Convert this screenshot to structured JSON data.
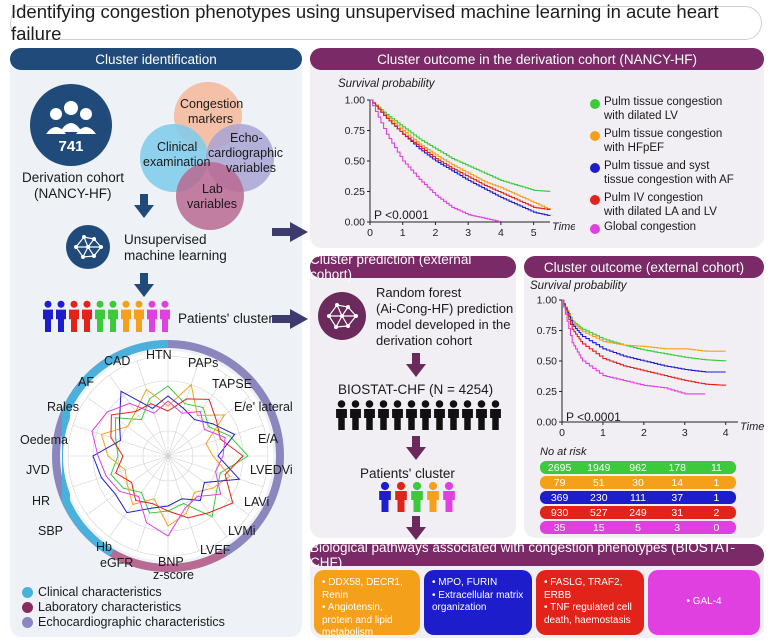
{
  "title": "Identifying congestion phenotypes using unsupervised machine learning in acute heart failure",
  "left_panel": {
    "header": "Cluster identification",
    "cohort_count": "741",
    "cohort_label_1": "Derivation cohort",
    "cohort_label_2": "(NANCY-HF)",
    "venn": {
      "congestion_1": "Congestion",
      "congestion_2": "markers",
      "clinical_1": "Clinical",
      "clinical_2": "examination",
      "echo_1": "Echo-",
      "echo_2": "cardiographic",
      "echo_3": "variables",
      "lab_1": "Lab",
      "lab_2": "variables"
    },
    "ml_label_1": "Unsupervised",
    "ml_label_2": "machine learning",
    "patients_cluster": "Patients' cluster",
    "radar_labels": {
      "htn": "HTN",
      "paps": "PAPs",
      "tapse": "TAPSE",
      "ee": "E/e' lateral",
      "ea": "E/A",
      "lvedvi": "LVEDVi",
      "lavi": "LAVi",
      "lvmi": "LVMi",
      "lvef": "LVEF",
      "bnp": "BNP",
      "zscore": "z-score",
      "egfr": "eGFR",
      "hb": "Hb",
      "sbp": "SBP",
      "hr": "HR",
      "jvd": "JVD",
      "oedema": "Oedema",
      "rales": "Rales",
      "af": "AF",
      "cad": "CAD"
    },
    "legend": [
      {
        "label": "Clinical characteristics",
        "color": "#4ab0dc"
      },
      {
        "label": "Laboratory characteristics",
        "color": "#8a2b5e"
      },
      {
        "label": "Echocardiographic characteristics",
        "color": "#8b86bd"
      }
    ]
  },
  "derivation_outcome": {
    "header": "Cluster outcome in the derivation cohort (NANCY-HF)",
    "ylabel": "Survival probability",
    "xlabel": "Time",
    "pvalue": "P <0.0001",
    "y_ticks": [
      "1.00",
      "0.75",
      "0.50",
      "0.25",
      "0.00"
    ],
    "x_ticks": [
      "0",
      "1",
      "2",
      "3",
      "4",
      "5"
    ]
  },
  "km_legend": [
    {
      "line1": "Pulm tissue congestion",
      "line2": "with dilated LV",
      "color": "#3cc93c"
    },
    {
      "line1": "Pulm tissue congestion",
      "line2": "with HFpEF",
      "color": "#f5a01a"
    },
    {
      "line1": "Pulm tissue and syst",
      "line2": "tissue congestion with AF",
      "color": "#1d1dcc"
    },
    {
      "line1": "Pulm IV congestion",
      "line2": "with dilated LA and LV",
      "color": "#e2231a"
    },
    {
      "line1": "Global congestion",
      "line2": "",
      "color": "#e040e0"
    }
  ],
  "prediction": {
    "header": "Cluster prediction (external cohort)",
    "rf_1": "Random forest",
    "rf_2": "(Ai-Cong-HF) prediction",
    "rf_3": "model developed in the",
    "rf_4": "derivation cohort",
    "biostat": "BIOSTAT-CHF (N = 4254)",
    "patients_cluster": "Patients' cluster"
  },
  "external_outcome": {
    "header": "Cluster outcome (external cohort)",
    "ylabel": "Survival probability",
    "xlabel": "Time",
    "pvalue": "P <0.0001",
    "y_ticks": [
      "1.00",
      "0.75",
      "0.50",
      "0.25",
      "0.00"
    ],
    "x_ticks": [
      "0",
      "1",
      "2",
      "3",
      "4"
    ],
    "at_risk_title": "No at risk",
    "at_risk": [
      {
        "color": "#3cc93c",
        "values": [
          "2695",
          "1949",
          "962",
          "178",
          "11"
        ]
      },
      {
        "color": "#f5a01a",
        "values": [
          "79",
          "51",
          "30",
          "14",
          "1"
        ]
      },
      {
        "color": "#1d1dcc",
        "values": [
          "369",
          "230",
          "111",
          "37",
          "1"
        ]
      },
      {
        "color": "#e2231a",
        "values": [
          "930",
          "527",
          "249",
          "31",
          "2"
        ]
      },
      {
        "color": "#e040e0",
        "values": [
          "35",
          "15",
          "5",
          "3",
          "0"
        ]
      }
    ]
  },
  "pathways": {
    "header": "Biological pathways associated with congestion phenotypes (BIOSTAT-CHF)",
    "boxes": [
      {
        "color": "#f5a01a",
        "items": [
          "DDX58, DECR1, Renin",
          "Angiotensin, protein and lipid metabolism"
        ]
      },
      {
        "color": "#1d1dcc",
        "items": [
          "MPO, FURIN",
          "Extracellular matrix organization"
        ]
      },
      {
        "color": "#e2231a",
        "items": [
          "FASLG, TRAF2, ERBB",
          "TNF regulated cell death, haemostasis"
        ]
      },
      {
        "color": "#e040e0",
        "items": [
          "GAL-4"
        ]
      }
    ]
  },
  "cluster_colors": [
    "#1d1dcc",
    "#1d1dcc",
    "#e2231a",
    "#e2231a",
    "#3cc93c",
    "#3cc93c",
    "#f5a01a",
    "#f5a01a",
    "#e040e0",
    "#e040e0"
  ],
  "cluster_colors_small": [
    "#1d1dcc",
    "#e2231a",
    "#3cc93c",
    "#f5a01a",
    "#e040e0"
  ],
  "chart_data": [
    {
      "type": "line",
      "title": "Cluster outcome in the derivation cohort (NANCY-HF)",
      "xlabel": "Time",
      "ylabel": "Survival probability",
      "xlim": [
        0,
        5.5
      ],
      "ylim": [
        0,
        1
      ],
      "series": [
        {
          "name": "Pulm tissue congestion with dilated LV",
          "color": "#3cc93c",
          "x": [
            0,
            0.5,
            1,
            1.5,
            2,
            2.5,
            3,
            3.5,
            4,
            4.5,
            5,
            5.5
          ],
          "values": [
            1.0,
            0.88,
            0.78,
            0.68,
            0.6,
            0.52,
            0.46,
            0.4,
            0.34,
            0.3,
            0.26,
            0.25
          ]
        },
        {
          "name": "Pulm tissue congestion with HFpEF",
          "color": "#f5a01a",
          "x": [
            0,
            0.5,
            1,
            1.5,
            2,
            2.5,
            3,
            3.5,
            4,
            4.5,
            5,
            5.5
          ],
          "values": [
            1.0,
            0.87,
            0.75,
            0.64,
            0.55,
            0.47,
            0.4,
            0.33,
            0.28,
            0.22,
            0.16,
            0.1
          ]
        },
        {
          "name": "Pulm tissue and syst tissue congestion with AF",
          "color": "#1d1dcc",
          "x": [
            0,
            0.5,
            1,
            1.5,
            2,
            2.5,
            3,
            3.5,
            4,
            4.5,
            5,
            5.5
          ],
          "values": [
            1.0,
            0.85,
            0.72,
            0.6,
            0.5,
            0.42,
            0.34,
            0.27,
            0.2,
            0.14,
            0.08,
            0.05
          ]
        },
        {
          "name": "Pulm IV congestion with dilated LA and LV",
          "color": "#e2231a",
          "x": [
            0,
            0.5,
            1,
            1.5,
            2,
            2.5,
            3,
            3.5,
            4,
            4.5,
            5,
            5.5
          ],
          "values": [
            1.0,
            0.85,
            0.72,
            0.62,
            0.52,
            0.44,
            0.37,
            0.3,
            0.24,
            0.18,
            0.12,
            0.1
          ]
        },
        {
          "name": "Global congestion",
          "color": "#e040e0",
          "x": [
            0,
            0.5,
            1,
            1.5,
            2,
            2.5,
            3,
            3.5,
            4
          ],
          "values": [
            1.0,
            0.72,
            0.5,
            0.35,
            0.22,
            0.12,
            0.06,
            0.03,
            0.0
          ]
        }
      ]
    },
    {
      "type": "line",
      "title": "Cluster outcome (external cohort)",
      "xlabel": "Time",
      "ylabel": "Survival probability",
      "xlim": [
        0,
        4.3
      ],
      "ylim": [
        0,
        1
      ],
      "series": [
        {
          "name": "Pulm tissue congestion with dilated LV",
          "color": "#3cc93c",
          "x": [
            0,
            0.25,
            0.5,
            1,
            1.5,
            2,
            2.5,
            3,
            3.5,
            4
          ],
          "values": [
            1.0,
            0.83,
            0.76,
            0.68,
            0.63,
            0.59,
            0.56,
            0.53,
            0.51,
            0.5
          ]
        },
        {
          "name": "Pulm tissue congestion with HFpEF",
          "color": "#f5a01a",
          "x": [
            0,
            0.25,
            0.5,
            1,
            1.5,
            2,
            2.5,
            3,
            3.5,
            4
          ],
          "values": [
            1.0,
            0.82,
            0.74,
            0.66,
            0.63,
            0.62,
            0.6,
            0.6,
            0.58,
            0.58
          ]
        },
        {
          "name": "Pulm tissue and syst tissue congestion with AF",
          "color": "#1d1dcc",
          "x": [
            0,
            0.25,
            0.5,
            1,
            1.5,
            2,
            2.5,
            3,
            3.5,
            4
          ],
          "values": [
            1.0,
            0.8,
            0.7,
            0.6,
            0.54,
            0.5,
            0.46,
            0.43,
            0.41,
            0.41
          ]
        },
        {
          "name": "Pulm IV congestion with dilated LA and LV",
          "color": "#e2231a",
          "x": [
            0,
            0.25,
            0.5,
            1,
            1.5,
            2,
            2.5,
            3,
            3.5,
            4
          ],
          "values": [
            1.0,
            0.76,
            0.64,
            0.52,
            0.46,
            0.42,
            0.38,
            0.34,
            0.31,
            0.3
          ]
        },
        {
          "name": "Global congestion",
          "color": "#e040e0",
          "x": [
            0,
            0.25,
            0.5,
            1,
            1.5,
            2,
            2.5,
            3,
            3.5
          ],
          "values": [
            1.0,
            0.65,
            0.5,
            0.38,
            0.34,
            0.3,
            0.28,
            0.23,
            0.23
          ]
        }
      ]
    }
  ]
}
